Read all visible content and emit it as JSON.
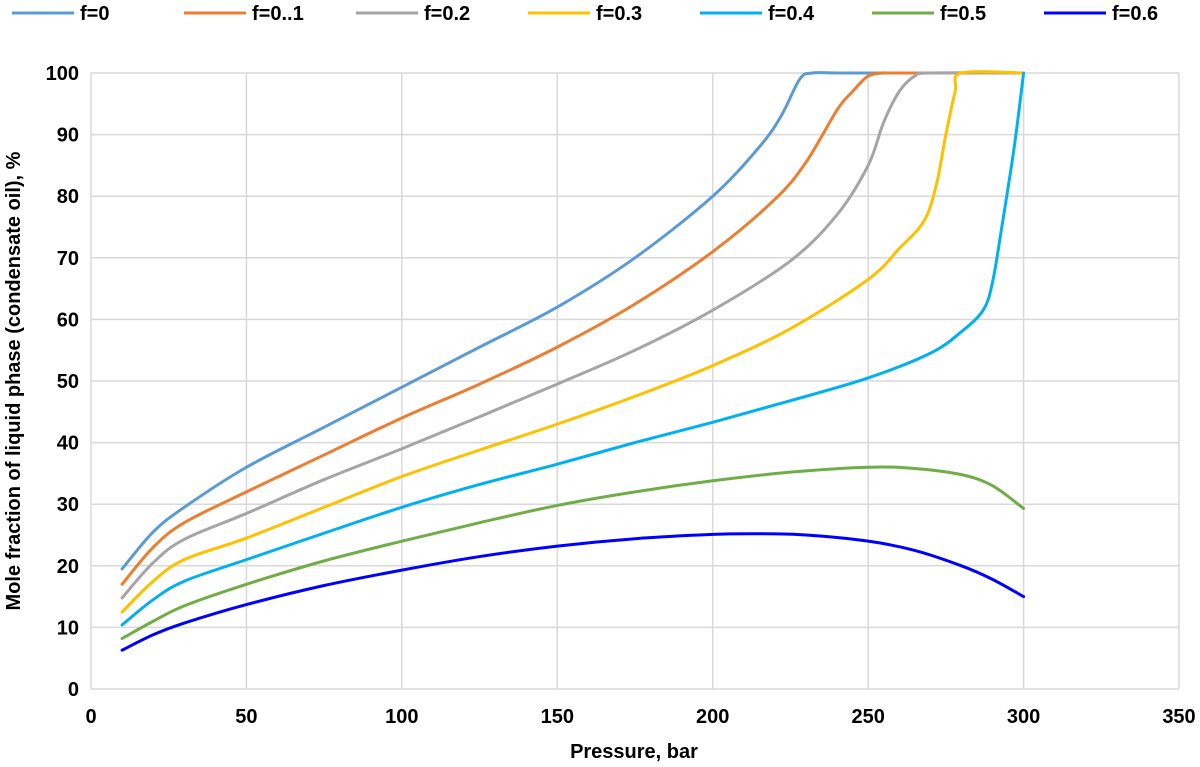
{
  "chart_data": {
    "type": "line",
    "title": "",
    "xlabel": "Pressure, bar",
    "ylabel": "Mole fraction of liquid phase (condensate oil), %",
    "xlim": [
      0,
      350
    ],
    "ylim": [
      0,
      100
    ],
    "xticks": [
      0,
      50,
      100,
      150,
      200,
      250,
      300,
      350
    ],
    "yticks": [
      0,
      10,
      20,
      30,
      40,
      50,
      60,
      70,
      80,
      90,
      100
    ],
    "grid": true,
    "legend_position": "top",
    "series": [
      {
        "name": "f=0",
        "color": "#5b9bd5",
        "x": [
          10,
          20,
          30,
          50,
          75,
          100,
          125,
          150,
          175,
          200,
          215,
          222,
          228,
          232,
          240,
          250,
          260,
          300
        ],
        "y": [
          19.5,
          25.5,
          29.5,
          36,
          42.5,
          49,
          55.5,
          62,
          70,
          80,
          88,
          93,
          99,
          100,
          100,
          100,
          100,
          100
        ]
      },
      {
        "name": "f=0..1",
        "color": "#ed7d31",
        "x": [
          10,
          20,
          30,
          50,
          75,
          100,
          125,
          150,
          175,
          200,
          220,
          230,
          240,
          245,
          250,
          255,
          260,
          300
        ],
        "y": [
          17,
          23,
          27,
          32,
          38,
          44,
          49.5,
          55.5,
          62.5,
          71,
          79.5,
          85.5,
          94,
          97,
          99.5,
          100,
          100,
          100
        ]
      },
      {
        "name": "f=0.2",
        "color": "#a5a5a5",
        "x": [
          10,
          20,
          30,
          50,
          75,
          100,
          125,
          150,
          175,
          200,
          225,
          240,
          250,
          255,
          260,
          265,
          270,
          300
        ],
        "y": [
          14.8,
          20.5,
          24.3,
          28.5,
          34,
          39,
          44.2,
          49.5,
          55,
          61.5,
          69.5,
          77,
          85,
          92,
          97,
          99.5,
          100,
          100
        ]
      },
      {
        "name": "f=0.3",
        "color": "#ffc000",
        "x": [
          10,
          20,
          30,
          50,
          75,
          100,
          125,
          150,
          175,
          200,
          225,
          250,
          260,
          268,
          272,
          275,
          278,
          280,
          300
        ],
        "y": [
          12.5,
          17.5,
          21,
          24.5,
          29.5,
          34.5,
          38.8,
          43,
          47.5,
          52.5,
          58.5,
          66.5,
          71.5,
          76,
          82,
          90,
          97,
          100,
          100
        ]
      },
      {
        "name": "f=0.4",
        "color": "#00b0f0",
        "x": [
          10,
          20,
          30,
          50,
          75,
          100,
          125,
          150,
          175,
          200,
          225,
          250,
          270,
          280,
          287,
          290,
          293,
          297,
          300
        ],
        "y": [
          10.4,
          14.5,
          17.5,
          21,
          25.3,
          29.5,
          33.2,
          36.5,
          40,
          43.3,
          46.8,
          50.5,
          54.5,
          58,
          61.5,
          66,
          75,
          88,
          100
        ]
      },
      {
        "name": "f=0.5",
        "color": "#70ad47",
        "x": [
          10,
          20,
          30,
          50,
          75,
          100,
          125,
          150,
          175,
          200,
          225,
          250,
          265,
          280,
          290,
          300
        ],
        "y": [
          8.2,
          11,
          13.5,
          17,
          20.8,
          24,
          27,
          29.8,
          32,
          33.8,
          35.2,
          36,
          35.8,
          34.8,
          33,
          29.3
        ]
      },
      {
        "name": "f=0.6",
        "color": "#0000ff",
        "x": [
          10,
          20,
          30,
          50,
          75,
          100,
          125,
          150,
          175,
          200,
          215,
          230,
          250,
          265,
          280,
          290,
          300
        ],
        "y": [
          6.3,
          8.8,
          10.7,
          13.7,
          16.8,
          19.3,
          21.5,
          23.2,
          24.4,
          25.1,
          25.2,
          25,
          24,
          22.5,
          20,
          17.8,
          15
        ]
      }
    ]
  }
}
